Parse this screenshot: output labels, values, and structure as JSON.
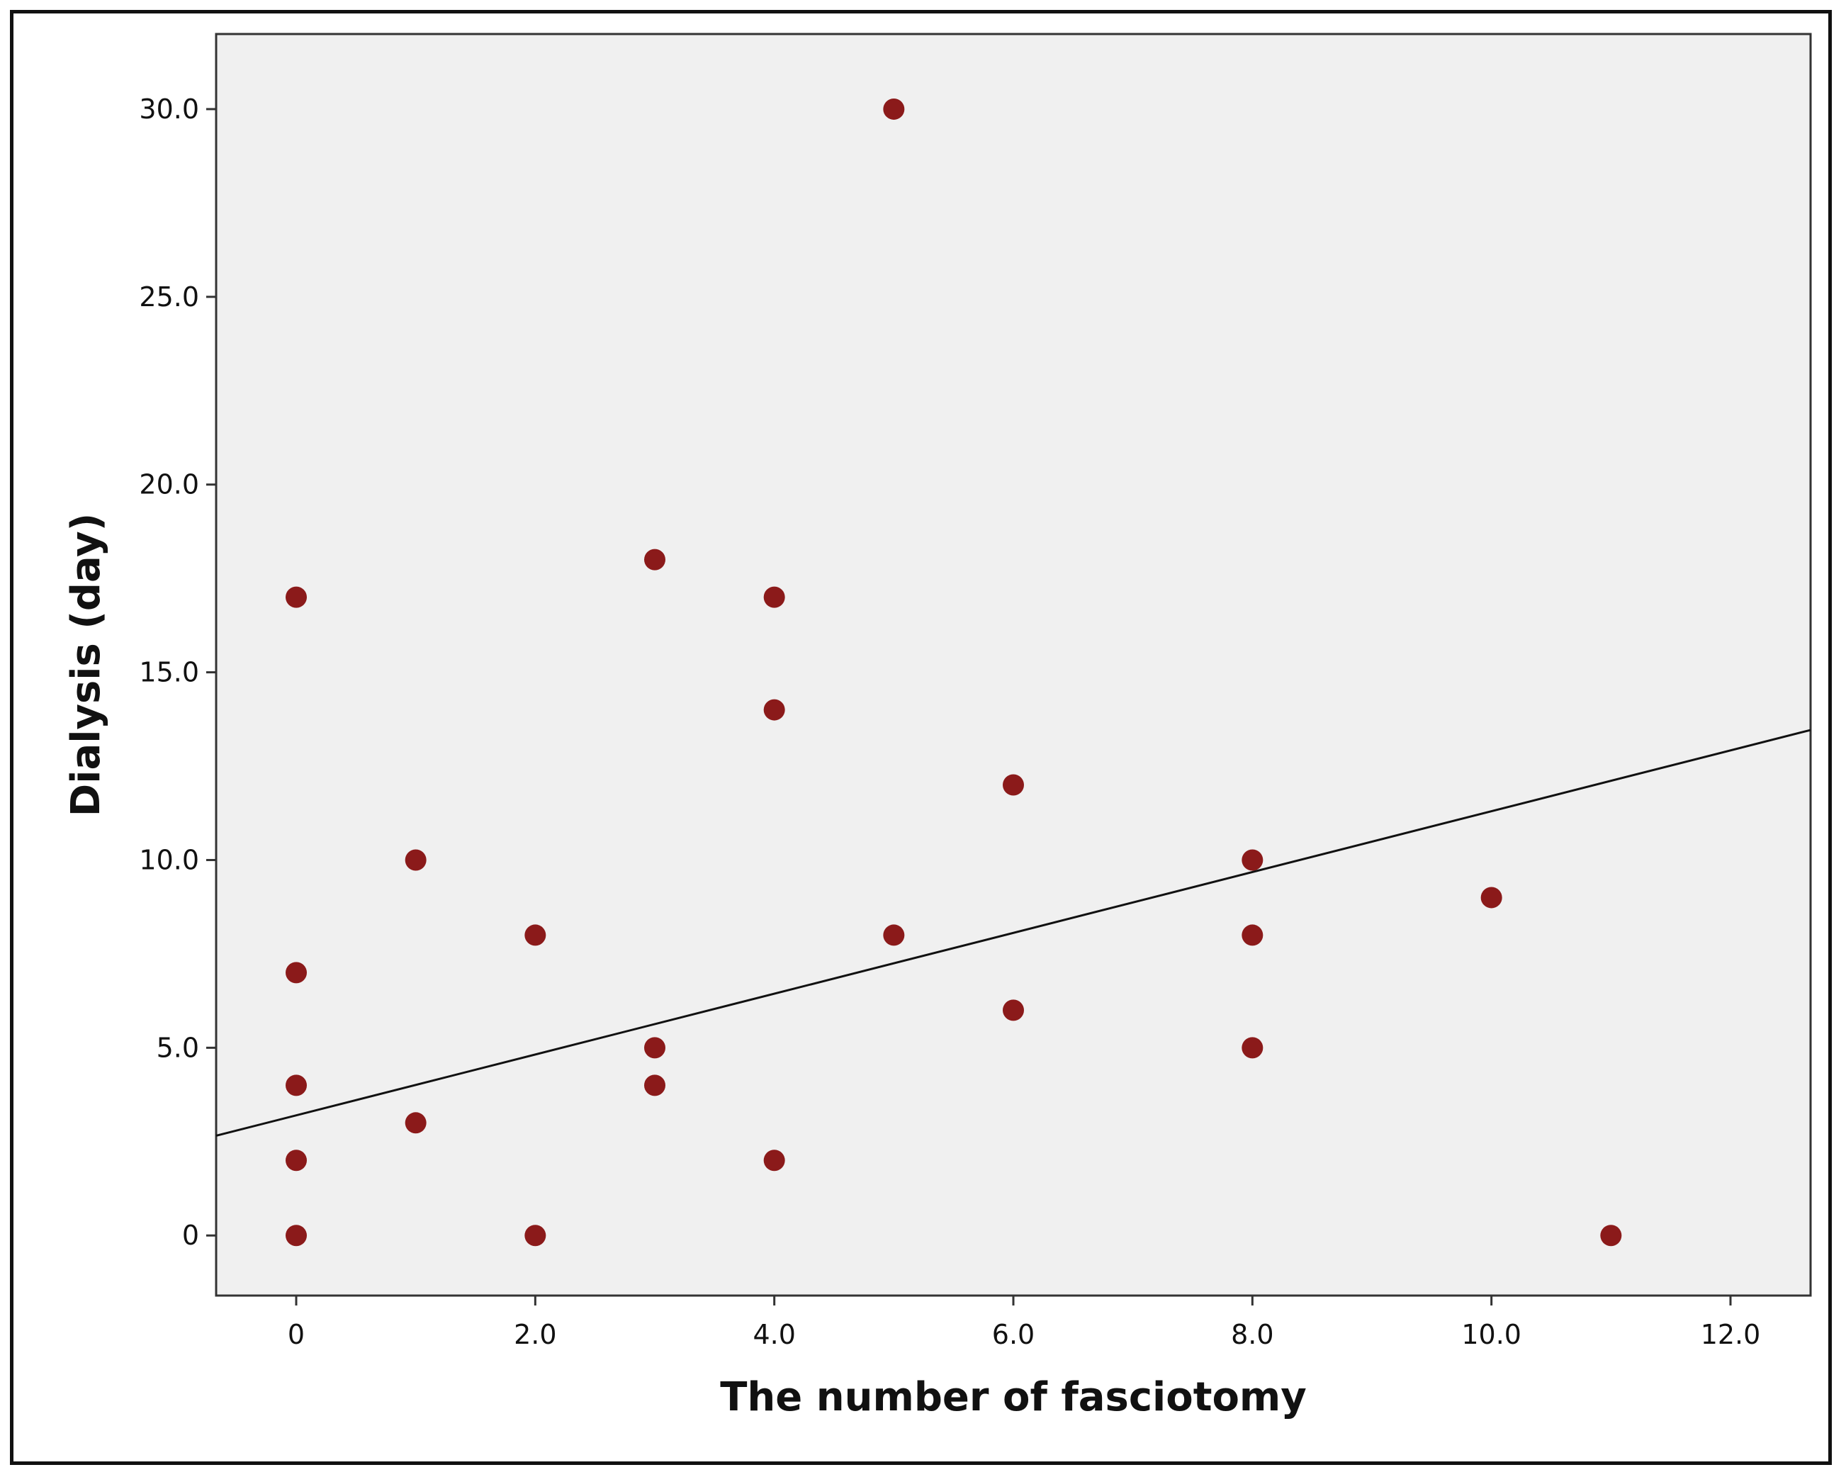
{
  "chart_data": {
    "type": "scatter",
    "title": "",
    "xlabel": "The number of fasciotomy",
    "ylabel": "Dialysis (day)",
    "xlim": [
      -0.67,
      12.67
    ],
    "ylim": [
      -1.6,
      32.0
    ],
    "x_ticks": [
      {
        "value": 0,
        "label": "0"
      },
      {
        "value": 2,
        "label": "2.0"
      },
      {
        "value": 4,
        "label": "4.0"
      },
      {
        "value": 6,
        "label": "6.0"
      },
      {
        "value": 8,
        "label": "8.0"
      },
      {
        "value": 10,
        "label": "10.0"
      },
      {
        "value": 12,
        "label": "12.0"
      }
    ],
    "y_ticks": [
      {
        "value": 0,
        "label": "0"
      },
      {
        "value": 5,
        "label": "5.0"
      },
      {
        "value": 10,
        "label": "10.0"
      },
      {
        "value": 15,
        "label": "15.0"
      },
      {
        "value": 20,
        "label": "20.0"
      },
      {
        "value": 25,
        "label": "25.0"
      },
      {
        "value": 30,
        "label": "30.0"
      }
    ],
    "points": [
      {
        "x": 0,
        "y": 17
      },
      {
        "x": 0,
        "y": 7
      },
      {
        "x": 0,
        "y": 4
      },
      {
        "x": 0,
        "y": 2
      },
      {
        "x": 0,
        "y": 0
      },
      {
        "x": 1,
        "y": 10
      },
      {
        "x": 1,
        "y": 3
      },
      {
        "x": 2,
        "y": 8
      },
      {
        "x": 2,
        "y": 0
      },
      {
        "x": 3,
        "y": 18
      },
      {
        "x": 3,
        "y": 5
      },
      {
        "x": 3,
        "y": 4
      },
      {
        "x": 4,
        "y": 17
      },
      {
        "x": 4,
        "y": 14
      },
      {
        "x": 4,
        "y": 2
      },
      {
        "x": 5,
        "y": 30
      },
      {
        "x": 5,
        "y": 8
      },
      {
        "x": 6,
        "y": 12
      },
      {
        "x": 6,
        "y": 6
      },
      {
        "x": 8,
        "y": 10
      },
      {
        "x": 8,
        "y": 8
      },
      {
        "x": 8,
        "y": 5
      },
      {
        "x": 10,
        "y": 9
      },
      {
        "x": 11,
        "y": 0
      }
    ],
    "fit_line": {
      "intercept": 3.2,
      "slope": 0.81
    },
    "grid": false,
    "colors": {
      "points": "#8b1a1a",
      "plot_background": "#f0f0f0",
      "line": "#111111",
      "axis": "#333333"
    }
  }
}
